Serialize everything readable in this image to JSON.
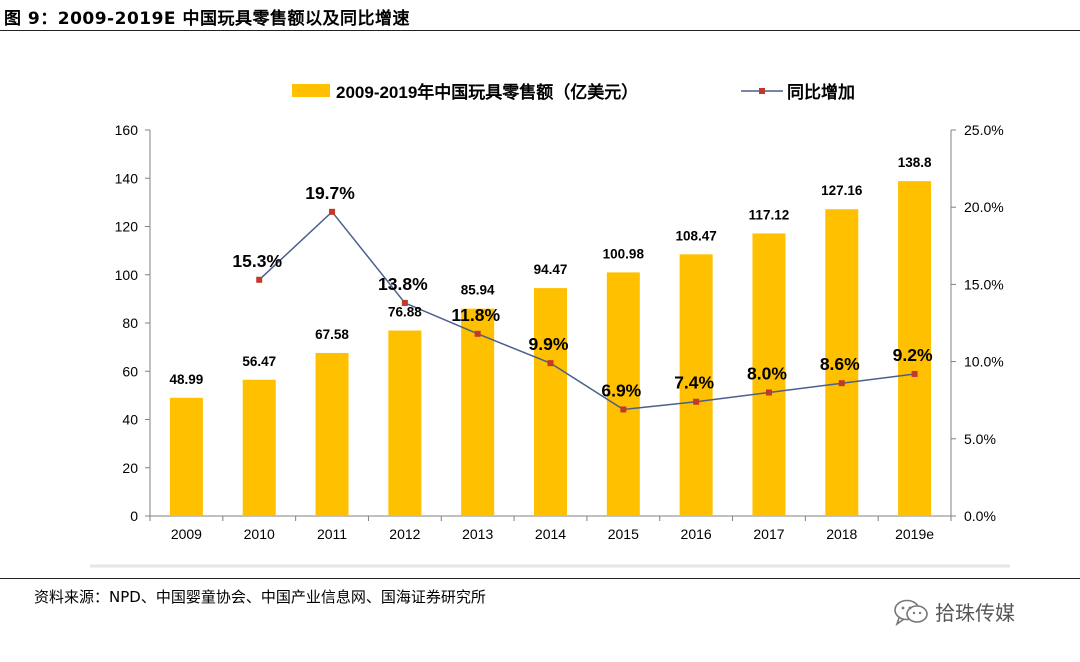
{
  "figure": {
    "title": "图 9：2009-2019E 中国玩具零售额以及同比增速",
    "source": "资料来源：NPD、中国婴童协会、中国产业信息网、国海证券研究所",
    "watermark": "拾珠传媒"
  },
  "chart_data": {
    "type": "bar",
    "categories": [
      "2009",
      "2010",
      "2011",
      "2012",
      "2013",
      "2014",
      "2015",
      "2016",
      "2017",
      "2018",
      "2019e"
    ],
    "series": [
      {
        "name": "2009-2019年中国玩具零售额（亿美元）",
        "type": "bar",
        "axis": "left",
        "color": "#FFC000",
        "values": [
          48.99,
          56.47,
          67.58,
          76.88,
          85.94,
          94.47,
          100.98,
          108.47,
          117.12,
          127.16,
          138.8
        ],
        "labels": [
          "48.99",
          "56.47",
          "67.58",
          "76.88",
          "85.94",
          "94.47",
          "100.98",
          "108.47",
          "117.12",
          "127.16",
          "138.8"
        ]
      },
      {
        "name": "同比增加",
        "type": "line",
        "axis": "right",
        "color": "#4A5F8C",
        "marker_color": "#C0392B",
        "values": [
          null,
          15.3,
          19.7,
          13.8,
          11.8,
          9.9,
          6.9,
          7.4,
          8.0,
          8.6,
          9.2
        ],
        "labels": [
          "",
          "15.3%",
          "19.7%",
          "13.8%",
          "11.8%",
          "9.9%",
          "6.9%",
          "7.4%",
          "8.0%",
          "8.6%",
          "9.2%"
        ]
      }
    ],
    "left_axis": {
      "ylim": [
        0,
        160
      ],
      "ticks": [
        "0",
        "20",
        "40",
        "60",
        "80",
        "100",
        "120",
        "140",
        "160"
      ]
    },
    "right_axis": {
      "ylim": [
        0,
        25
      ],
      "ticks": [
        "0.0%",
        "5.0%",
        "10.0%",
        "15.0%",
        "20.0%",
        "25.0%"
      ]
    },
    "legend_position": "top-center",
    "grid": false
  }
}
